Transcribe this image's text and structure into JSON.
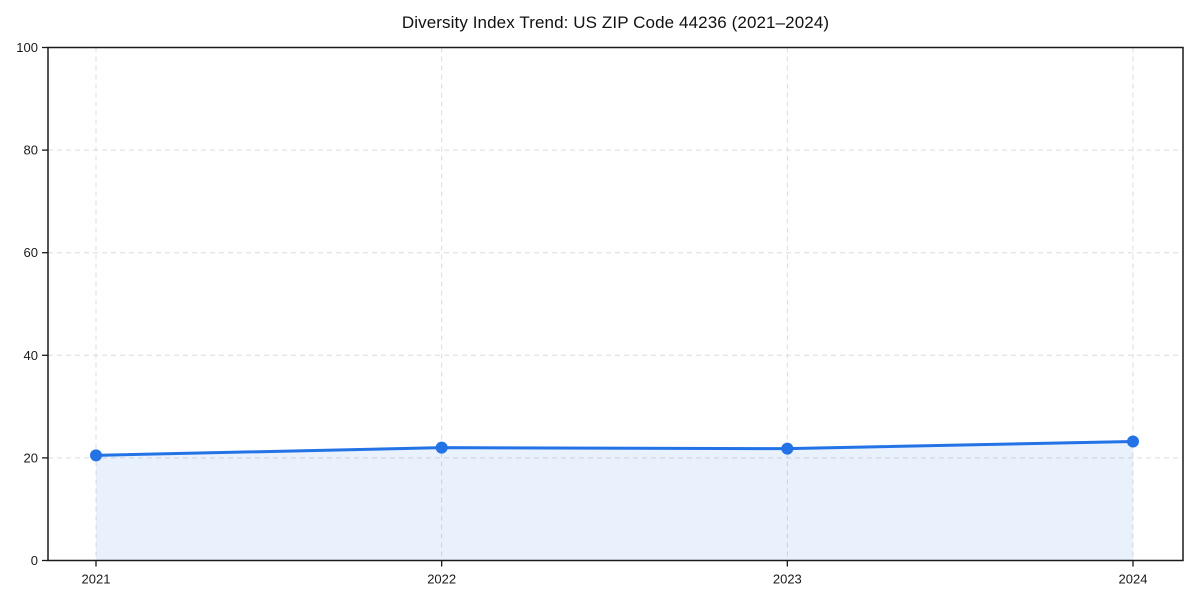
{
  "chart_data": {
    "type": "line",
    "title": "Diversity Index Trend: US ZIP Code 44236 (2021–2024)",
    "x": [
      2021,
      2022,
      2023,
      2024
    ],
    "xticks": [
      "2021",
      "2022",
      "2023",
      "2024"
    ],
    "values": [
      20.5,
      22.0,
      21.8,
      23.2
    ],
    "xlabel": "",
    "ylabel": "",
    "ylim": [
      0,
      100
    ],
    "yticks": [
      0,
      20,
      40,
      60,
      80,
      100
    ],
    "grid": "dashed-both-axes",
    "legend": "none",
    "area_fill": true,
    "marker": "circle",
    "colors": {
      "line": "#2373e6",
      "marker": "#2373e6",
      "area_fill": "rgba(35, 115, 230, 0.10)",
      "grid": "#dcdcdc",
      "axis": "#1a1a1a",
      "text": "#1a1a1a",
      "background": "#ffffff"
    }
  }
}
